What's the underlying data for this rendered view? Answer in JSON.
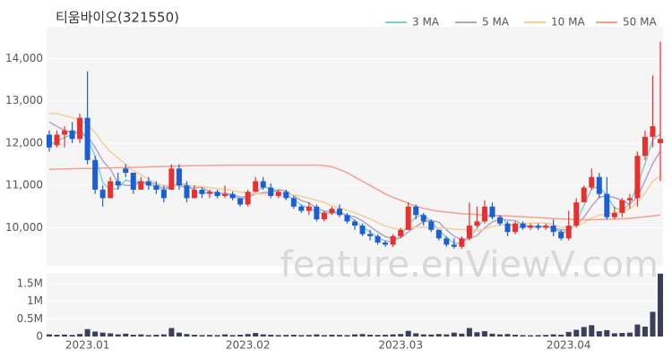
{
  "chart_data": {
    "type": "candlestick",
    "title": "티움바이오(321550)",
    "watermark": "feature.enViewV.com",
    "categories": [
      null,
      null,
      null,
      null,
      null,
      "2023.01",
      null,
      null,
      null,
      null,
      null,
      null,
      null,
      null,
      null,
      null,
      null,
      null,
      null,
      null,
      null,
      null,
      null,
      null,
      null,
      null,
      "2023.02",
      null,
      null,
      null,
      null,
      null,
      null,
      null,
      null,
      null,
      null,
      null,
      null,
      null,
      null,
      null,
      null,
      null,
      null,
      null,
      "2023.03",
      null,
      null,
      null,
      null,
      null,
      null,
      null,
      null,
      null,
      null,
      null,
      null,
      null,
      null,
      null,
      null,
      null,
      null,
      null,
      null,
      null,
      "2023.04",
      null,
      null,
      null,
      null,
      null,
      null,
      null,
      null,
      null,
      null,
      null,
      null
    ],
    "ohlc": [
      [
        12200,
        12300,
        11800,
        11900
      ],
      [
        11950,
        12300,
        11900,
        12200
      ],
      [
        12200,
        12400,
        11900,
        12300
      ],
      [
        12300,
        12500,
        12000,
        12100
      ],
      [
        12100,
        12700,
        12000,
        12600
      ],
      [
        12600,
        13700,
        11500,
        11600
      ],
      [
        11600,
        11700,
        10800,
        10900
      ],
      [
        10900,
        11000,
        10500,
        10700
      ],
      [
        10700,
        11200,
        10700,
        11100
      ],
      [
        11100,
        11300,
        10900,
        11000
      ],
      [
        11400,
        11500,
        11200,
        11300
      ],
      [
        11300,
        11300,
        10800,
        10900
      ],
      [
        10900,
        11200,
        10900,
        11100
      ],
      [
        11100,
        11200,
        10900,
        11000
      ],
      [
        11000,
        11100,
        10800,
        10900
      ],
      [
        10900,
        11000,
        10600,
        10700
      ],
      [
        10900,
        11500,
        10900,
        11400
      ],
      [
        11400,
        11500,
        10900,
        11000
      ],
      [
        11000,
        11100,
        10600,
        10700
      ],
      [
        10700,
        11000,
        10700,
        10900
      ],
      [
        10900,
        10950,
        10700,
        10800
      ],
      [
        10800,
        10900,
        10700,
        10850
      ],
      [
        10850,
        10900,
        10700,
        10750
      ],
      [
        10750,
        11000,
        10700,
        10800
      ],
      [
        10800,
        10850,
        10650,
        10700
      ],
      [
        10700,
        10700,
        10500,
        10550
      ],
      [
        10550,
        10900,
        10500,
        10850
      ],
      [
        10850,
        11200,
        10850,
        11100
      ],
      [
        11100,
        11200,
        10900,
        10950
      ],
      [
        10950,
        11050,
        10700,
        10750
      ],
      [
        10750,
        10900,
        10700,
        10850
      ],
      [
        10850,
        10900,
        10650,
        10700
      ],
      [
        10700,
        10750,
        10450,
        10500
      ],
      [
        10500,
        10550,
        10350,
        10400
      ],
      [
        10400,
        10600,
        10300,
        10500
      ],
      [
        10500,
        10550,
        10150,
        10200
      ],
      [
        10200,
        10400,
        10150,
        10350
      ],
      [
        10350,
        10500,
        10300,
        10450
      ],
      [
        10450,
        10550,
        10250,
        10300
      ],
      [
        10300,
        10350,
        10100,
        10150
      ],
      [
        10150,
        10200,
        9950,
        10050
      ],
      [
        10050,
        10100,
        9800,
        9850
      ],
      [
        9850,
        9950,
        9700,
        9800
      ],
      [
        9800,
        9850,
        9600,
        9650
      ],
      [
        9650,
        9700,
        9550,
        9600
      ],
      [
        9600,
        9850,
        9550,
        9800
      ],
      [
        9800,
        10000,
        9750,
        9950
      ],
      [
        9950,
        10600,
        9950,
        10500
      ],
      [
        10500,
        10550,
        10200,
        10300
      ],
      [
        10300,
        10350,
        10050,
        10150
      ],
      [
        10150,
        10200,
        9900,
        9950
      ],
      [
        9950,
        9950,
        9700,
        9750
      ],
      [
        9750,
        9800,
        9550,
        9600
      ],
      [
        9600,
        9750,
        9500,
        9550
      ],
      [
        9550,
        9800,
        9500,
        9750
      ],
      [
        9750,
        10600,
        9700,
        10050
      ],
      [
        10050,
        10500,
        10000,
        10150
      ],
      [
        10150,
        10650,
        10100,
        10500
      ],
      [
        10500,
        10600,
        10200,
        10250
      ],
      [
        10250,
        10300,
        10050,
        10100
      ],
      [
        10100,
        10150,
        9800,
        9900
      ],
      [
        9900,
        10150,
        9850,
        10100
      ],
      [
        10100,
        10150,
        9950,
        10000
      ],
      [
        10000,
        10100,
        9950,
        10050
      ],
      [
        10050,
        10100,
        9950,
        10000
      ],
      [
        10000,
        10100,
        9950,
        10050
      ],
      [
        10050,
        10200,
        9800,
        9900
      ],
      [
        9900,
        9950,
        9700,
        9750
      ],
      [
        9750,
        10400,
        9700,
        10050
      ],
      [
        10050,
        10700,
        10000,
        10600
      ],
      [
        10600,
        11000,
        10600,
        10950
      ],
      [
        10950,
        11400,
        10900,
        11200
      ],
      [
        11200,
        11300,
        10700,
        10800
      ],
      [
        10800,
        11200,
        10200,
        10250
      ],
      [
        10250,
        10500,
        10200,
        10350
      ],
      [
        10350,
        10700,
        10250,
        10650
      ],
      [
        10650,
        10800,
        10450,
        10700
      ],
      [
        10700,
        11800,
        10500,
        11700
      ],
      [
        11700,
        12300,
        11600,
        12150
      ],
      [
        12150,
        13600,
        11900,
        12400
      ],
      [
        12000,
        14400,
        11100,
        12100
      ]
    ],
    "up_color": "#e8312f",
    "down_color": "#1c5fd4",
    "ylim": [
      9100,
      14750
    ],
    "yticks": [
      {
        "value": 10000,
        "label": "10,000"
      },
      {
        "value": 11000,
        "label": "11,000"
      },
      {
        "value": 12000,
        "label": "12,000"
      },
      {
        "value": 13000,
        "label": "13,000"
      },
      {
        "value": 14000,
        "label": "14,000"
      }
    ],
    "grid": true,
    "series": [
      {
        "name": "3 MA",
        "color": "#7fcfcf",
        "values": [
          11950,
          12050,
          12133,
          12200,
          12333,
          12100,
          11700,
          11067,
          10900,
          10933,
          11133,
          11067,
          11100,
          11000,
          11000,
          10867,
          11000,
          11033,
          11033,
          10867,
          10800,
          10850,
          10800,
          10800,
          10750,
          10683,
          10700,
          10833,
          10967,
          10933,
          10850,
          10767,
          10683,
          10533,
          10467,
          10367,
          10350,
          10333,
          10367,
          10300,
          10167,
          10017,
          9900,
          9767,
          9683,
          9683,
          9783,
          10083,
          10250,
          10317,
          10133,
          9950,
          9767,
          9633,
          9633,
          9783,
          9983,
          10233,
          10300,
          10283,
          10083,
          10033,
          10000,
          10050,
          10017,
          10033,
          9983,
          9900,
          9900,
          10133,
          10533,
          10917,
          10983,
          10750,
          10467,
          10417,
          10567,
          11017,
          11517,
          12083,
          12217
        ]
      },
      {
        "name": "5 MA",
        "color": "#b7a3c9",
        "values": [
          12500,
          12400,
          12300,
          12250,
          12220,
          12160,
          11900,
          11580,
          11380,
          11060,
          11000,
          11000,
          11080,
          11060,
          11040,
          10920,
          11020,
          11000,
          10940,
          10940,
          10960,
          10850,
          10800,
          10820,
          10780,
          10730,
          10730,
          10800,
          10830,
          10840,
          10900,
          10870,
          10750,
          10640,
          10590,
          10460,
          10390,
          10380,
          10360,
          10290,
          10260,
          10160,
          10030,
          9900,
          9790,
          9740,
          9760,
          9900,
          10030,
          10140,
          10170,
          10130,
          9950,
          9800,
          9720,
          9740,
          9820,
          10000,
          10140,
          10210,
          10180,
          10170,
          10070,
          10030,
          10010,
          10040,
          10000,
          9950,
          9950,
          10070,
          10250,
          10510,
          10720,
          10760,
          10710,
          10650,
          10550,
          10730,
          11110,
          11520,
          11810
        ]
      },
      {
        "name": "10 MA",
        "color": "#f4cf98",
        "values": [
          12700,
          12700,
          12650,
          12600,
          12550,
          12450,
          12250,
          12000,
          11800,
          11650,
          11500,
          11350,
          11250,
          11150,
          11050,
          11000,
          11000,
          11000,
          11000,
          10990,
          10980,
          10950,
          10920,
          10900,
          10880,
          10840,
          10830,
          10810,
          10800,
          10790,
          10820,
          10800,
          10780,
          10740,
          10700,
          10650,
          10600,
          10520,
          10470,
          10410,
          10360,
          10280,
          10210,
          10120,
          10040,
          9990,
          9960,
          10000,
          10010,
          10010,
          10010,
          9990,
          9990,
          9970,
          9960,
          9950,
          9930,
          9970,
          10030,
          10060,
          10070,
          10090,
          10100,
          10110,
          10110,
          10110,
          10080,
          10010,
          10010,
          10040,
          10120,
          10230,
          10300,
          10320,
          10350,
          10410,
          10450,
          10600,
          10820,
          11100,
          11230
        ]
      },
      {
        "name": "50 MA",
        "color": "#f3a18c",
        "values": [
          11380,
          11385,
          11390,
          11395,
          11400,
          11400,
          11405,
          11410,
          11415,
          11420,
          11420,
          11425,
          11430,
          11440,
          11445,
          11450,
          11455,
          11460,
          11465,
          11470,
          11470,
          11475,
          11475,
          11480,
          11480,
          11480,
          11480,
          11480,
          11480,
          11480,
          11480,
          11480,
          11480,
          11480,
          11480,
          11480,
          11470,
          11440,
          11380,
          11300,
          11200,
          11100,
          11000,
          10900,
          10800,
          10720,
          10650,
          10580,
          10510,
          10460,
          10420,
          10390,
          10370,
          10350,
          10330,
          10320,
          10310,
          10300,
          10290,
          10285,
          10280,
          10270,
          10260,
          10250,
          10240,
          10230,
          10220,
          10210,
          10200,
          10195,
          10190,
          10190,
          10195,
          10200,
          10205,
          10210,
          10220,
          10240,
          10260,
          10280,
          10300
        ]
      }
    ],
    "legend": "top-right",
    "volume": {
      "color": "#3b3f5c",
      "values": [
        60000,
        50000,
        55000,
        45000,
        70000,
        210000,
        140000,
        110000,
        90000,
        60000,
        80000,
        50000,
        60000,
        40000,
        50000,
        60000,
        240000,
        110000,
        70000,
        50000,
        40000,
        45000,
        40000,
        60000,
        40000,
        50000,
        70000,
        100000,
        60000,
        50000,
        40000,
        45000,
        50000,
        40000,
        45000,
        60000,
        40000,
        50000,
        45000,
        40000,
        60000,
        70000,
        50000,
        45000,
        50000,
        60000,
        70000,
        160000,
        90000,
        60000,
        55000,
        70000,
        60000,
        110000,
        80000,
        240000,
        120000,
        150000,
        80000,
        60000,
        70000,
        50000,
        40000,
        35000,
        40000,
        45000,
        60000,
        50000,
        130000,
        190000,
        270000,
        320000,
        150000,
        180000,
        90000,
        100000,
        110000,
        340000,
        280000,
        700000,
        1780000
      ],
      "ylim": [
        0,
        1800000
      ],
      "yticks": [
        0,
        {
          "value": 500000,
          "label": "0.5M"
        },
        {
          "value": 1000000,
          "label": "1M"
        },
        {
          "value": 1500000,
          "label": "1.5M"
        }
      ]
    }
  }
}
